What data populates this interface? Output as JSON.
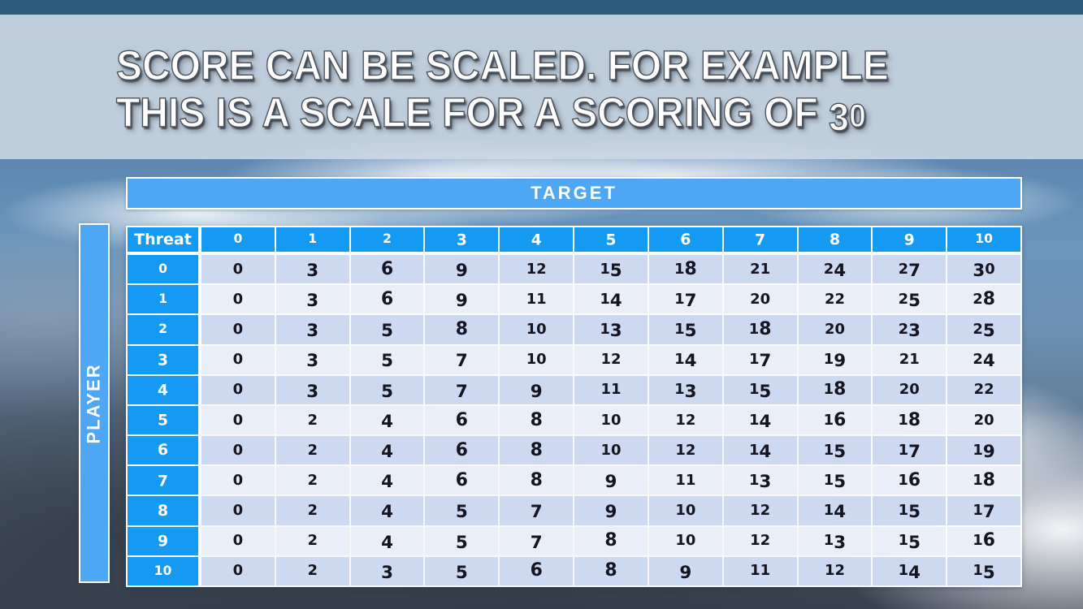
{
  "title": {
    "line1": "SCORE CAN BE SCALED. FOR EXAMPLE",
    "line2": "THIS IS A SCALE FOR A SCORING OF 30"
  },
  "table": {
    "target_label": "TARGET",
    "player_label": "PLAYER",
    "corner_label": "Threat",
    "column_headers": [
      "0",
      "1",
      "2",
      "3",
      "4",
      "5",
      "6",
      "7",
      "8",
      "9",
      "10"
    ],
    "row_headers": [
      "0",
      "1",
      "2",
      "3",
      "4",
      "5",
      "6",
      "7",
      "8",
      "9",
      "10"
    ],
    "rows": [
      [
        0,
        3,
        6,
        9,
        12,
        15,
        18,
        21,
        24,
        27,
        30
      ],
      [
        0,
        3,
        6,
        9,
        11,
        14,
        17,
        20,
        22,
        25,
        28
      ],
      [
        0,
        3,
        5,
        8,
        10,
        13,
        15,
        18,
        20,
        23,
        25
      ],
      [
        0,
        3,
        5,
        7,
        10,
        12,
        14,
        17,
        19,
        21,
        24
      ],
      [
        0,
        3,
        5,
        7,
        9,
        11,
        13,
        15,
        18,
        20,
        22
      ],
      [
        0,
        2,
        4,
        6,
        8,
        10,
        12,
        14,
        16,
        18,
        20
      ],
      [
        0,
        2,
        4,
        6,
        8,
        10,
        12,
        14,
        15,
        17,
        19
      ],
      [
        0,
        2,
        4,
        6,
        8,
        9,
        11,
        13,
        15,
        16,
        18
      ],
      [
        0,
        2,
        4,
        5,
        7,
        9,
        10,
        12,
        14,
        15,
        17
      ],
      [
        0,
        2,
        4,
        5,
        7,
        8,
        10,
        12,
        13,
        15,
        16
      ],
      [
        0,
        2,
        3,
        5,
        6,
        8,
        9,
        11,
        12,
        14,
        15
      ]
    ]
  },
  "colors": {
    "header_blue": "#149af2",
    "bar_blue": "#4ea7f4",
    "band_dark": "#ccd9f1",
    "band_light": "#e9eef9",
    "cell_text": "#15151f",
    "top_strip": "#2c5b7d",
    "title_band": "rgba(206,218,229,0.88)"
  }
}
